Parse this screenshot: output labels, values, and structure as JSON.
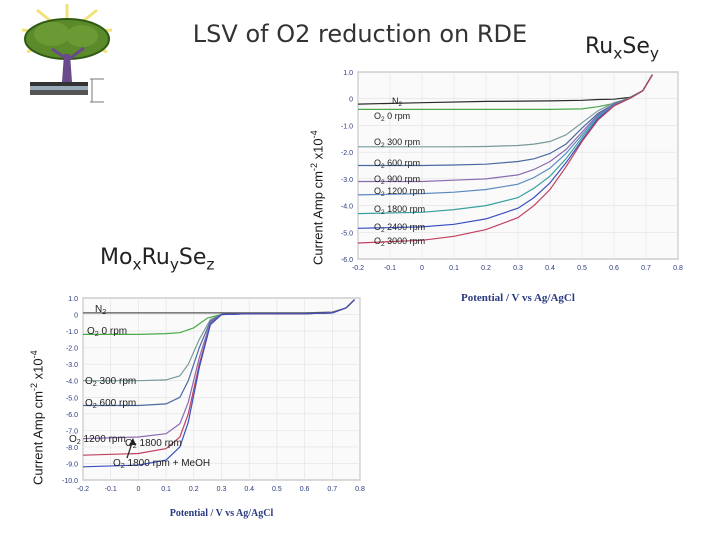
{
  "slide": {
    "title": "LSV of O2 reduction on RDE",
    "ru_label": {
      "a": "Ru",
      "b": "x",
      "c": "Se",
      "d": "y"
    },
    "mo_label": {
      "a": "Mo",
      "b": "x",
      "c": "Ru",
      "d": "y",
      "e": "Se",
      "f": "z"
    },
    "ylabel": {
      "a": "Current Amp cm",
      "b": "-2",
      "c": " x10",
      "d": "-4"
    }
  },
  "chart_data": [
    {
      "type": "line",
      "name": "RuxSey",
      "xlabel": "Potential / V vs Ag/AgCl",
      "ylabel": "Current Amp cm-2 x10-4",
      "xlim": [
        -0.2,
        0.8
      ],
      "ylim": [
        -6.0,
        1.0
      ],
      "xticks": [
        "-0.2",
        "-0.1",
        "0",
        "0.1",
        "0.2",
        "0.3",
        "0.4",
        "0.5",
        "0.6",
        "0.7",
        "0.8"
      ],
      "yticks": [
        "1.0",
        "0",
        "-1.0",
        "-2.0",
        "-3.0",
        "-4.0",
        "-5.0",
        "-6.0"
      ],
      "series": [
        {
          "name": "N2",
          "color": "#2a2a2a",
          "x": [
            -0.2,
            0.0,
            0.2,
            0.4,
            0.5,
            0.55,
            0.6,
            0.65,
            0.69,
            0.72
          ],
          "y": [
            -0.2,
            -0.15,
            -0.1,
            -0.08,
            -0.06,
            -0.03,
            -0.02,
            0.05,
            0.3,
            0.9
          ]
        },
        {
          "name": "O2 0 rpm",
          "color": "#4aa84a",
          "x": [
            -0.2,
            0.0,
            0.2,
            0.4,
            0.5,
            0.55,
            0.6,
            0.65,
            0.69,
            0.72
          ],
          "y": [
            -0.4,
            -0.4,
            -0.4,
            -0.4,
            -0.38,
            -0.3,
            -0.18,
            0.05,
            0.3,
            0.9
          ]
        },
        {
          "name": "O2 300 rpm",
          "color": "#7a9a9a",
          "x": [
            -0.2,
            0.0,
            0.1,
            0.2,
            0.3,
            0.35,
            0.4,
            0.45,
            0.5,
            0.55,
            0.6,
            0.65,
            0.69,
            0.72
          ],
          "y": [
            -1.8,
            -1.8,
            -1.8,
            -1.79,
            -1.75,
            -1.7,
            -1.6,
            -1.35,
            -0.9,
            -0.45,
            -0.15,
            0.02,
            0.3,
            0.9
          ]
        },
        {
          "name": "O2 600 rpm",
          "color": "#4a6aa0",
          "x": [
            -0.2,
            0.0,
            0.1,
            0.2,
            0.3,
            0.35,
            0.4,
            0.45,
            0.5,
            0.55,
            0.6,
            0.65,
            0.69,
            0.72
          ],
          "y": [
            -2.5,
            -2.5,
            -2.48,
            -2.45,
            -2.35,
            -2.25,
            -2.05,
            -1.7,
            -1.1,
            -0.55,
            -0.2,
            0.02,
            0.3,
            0.9
          ]
        },
        {
          "name": "O2 900 rpm",
          "color": "#8a6ab0",
          "x": [
            -0.2,
            0.0,
            0.1,
            0.2,
            0.3,
            0.35,
            0.4,
            0.45,
            0.5,
            0.55,
            0.6,
            0.65,
            0.69,
            0.72
          ],
          "y": [
            -3.1,
            -3.1,
            -3.05,
            -3.0,
            -2.85,
            -2.65,
            -2.35,
            -1.9,
            -1.25,
            -0.6,
            -0.22,
            0.02,
            0.3,
            0.9
          ]
        },
        {
          "name": "O2 1200 rpm",
          "color": "#5a8ac0",
          "x": [
            -0.2,
            0.0,
            0.1,
            0.2,
            0.3,
            0.35,
            0.4,
            0.45,
            0.5,
            0.55,
            0.6,
            0.65,
            0.69,
            0.72
          ],
          "y": [
            -3.6,
            -3.55,
            -3.5,
            -3.4,
            -3.2,
            -2.95,
            -2.6,
            -2.05,
            -1.35,
            -0.65,
            -0.24,
            0.02,
            0.3,
            0.9
          ]
        },
        {
          "name": "O2 1800 rpm",
          "color": "#3aa0a0",
          "x": [
            -0.2,
            0.0,
            0.1,
            0.2,
            0.3,
            0.35,
            0.4,
            0.45,
            0.5,
            0.55,
            0.6,
            0.65,
            0.69,
            0.72
          ],
          "y": [
            -4.3,
            -4.25,
            -4.15,
            -4.0,
            -3.7,
            -3.35,
            -2.9,
            -2.25,
            -1.45,
            -0.7,
            -0.25,
            0.02,
            0.3,
            0.9
          ]
        },
        {
          "name": "O2 2400 rpm",
          "color": "#3a50c0",
          "x": [
            -0.2,
            0.0,
            0.1,
            0.2,
            0.3,
            0.35,
            0.4,
            0.45,
            0.5,
            0.55,
            0.6,
            0.65,
            0.69,
            0.72
          ],
          "y": [
            -4.85,
            -4.8,
            -4.7,
            -4.5,
            -4.1,
            -3.7,
            -3.15,
            -2.4,
            -1.55,
            -0.75,
            -0.26,
            0.02,
            0.3,
            0.9
          ]
        },
        {
          "name": "O2 3000 rpm",
          "color": "#c04060",
          "x": [
            -0.2,
            0.0,
            0.1,
            0.2,
            0.3,
            0.35,
            0.4,
            0.45,
            0.5,
            0.55,
            0.6,
            0.65,
            0.69,
            0.72
          ],
          "y": [
            -5.4,
            -5.3,
            -5.15,
            -4.9,
            -4.45,
            -4.0,
            -3.4,
            -2.55,
            -1.6,
            -0.8,
            -0.27,
            0.02,
            0.3,
            0.9
          ]
        }
      ],
      "annotations": [
        {
          "text": "N2",
          "color": "#222222"
        },
        {
          "text": "O2 0 rpm",
          "color": "#222222"
        },
        {
          "text": "O2 300 rpm",
          "color": "#222222"
        },
        {
          "text": "O2 600 rpm",
          "color": "#222222"
        },
        {
          "text": "O2 900 rpm",
          "color": "#222222"
        },
        {
          "text": "O2 1200 rpm",
          "color": "#222222"
        },
        {
          "text": "O2 1800 rpm",
          "color": "#222222"
        },
        {
          "text": "O2 2400 rpm",
          "color": "#222222"
        },
        {
          "text": "O2 3000 rpm",
          "color": "#222222"
        }
      ]
    },
    {
      "type": "line",
      "name": "MoxRuySez",
      "xlabel": "Potential / V vs Ag/AgCl",
      "ylabel": "Current Amp cm-2 x10-4",
      "xlim": [
        -0.2,
        0.8
      ],
      "ylim": [
        -10.0,
        1.0
      ],
      "xticks": [
        "-0.2",
        "-0.1",
        "0",
        "0.1",
        "0.2",
        "0.3",
        "0.4",
        "0.5",
        "0.6",
        "0.7",
        "0.8"
      ],
      "yticks": [
        "1.0",
        "0",
        "-1.0",
        "-2.0",
        "-3.0",
        "-4.0",
        "-5.0",
        "-6.0",
        "-7.0",
        "-8.0",
        "-9.0",
        "-10.0"
      ],
      "series": [
        {
          "name": "N2",
          "color": "#555555",
          "x": [
            -0.2,
            0.0,
            0.2,
            0.4,
            0.6,
            0.7,
            0.75,
            0.78
          ],
          "y": [
            0.1,
            0.1,
            0.1,
            0.1,
            0.1,
            0.15,
            0.4,
            0.9
          ]
        },
        {
          "name": "O2 0 rpm",
          "color": "#4aa84a",
          "x": [
            -0.2,
            0.0,
            0.1,
            0.15,
            0.2,
            0.25,
            0.3,
            0.4,
            0.6,
            0.7,
            0.75,
            0.78
          ],
          "y": [
            -1.2,
            -1.2,
            -1.15,
            -1.1,
            -0.8,
            -0.2,
            0.0,
            0.05,
            0.05,
            0.1,
            0.4,
            0.9
          ]
        },
        {
          "name": "O2 300 rpm",
          "color": "#7a9a9a",
          "x": [
            -0.2,
            0.0,
            0.1,
            0.15,
            0.18,
            0.22,
            0.26,
            0.3,
            0.4,
            0.6,
            0.7,
            0.75,
            0.78
          ],
          "y": [
            -4.0,
            -4.0,
            -3.95,
            -3.7,
            -3.0,
            -1.5,
            -0.3,
            0.0,
            0.05,
            0.05,
            0.1,
            0.4,
            0.9
          ]
        },
        {
          "name": "O2 600 rpm",
          "color": "#4a6aa0",
          "x": [
            -0.2,
            0.0,
            0.1,
            0.15,
            0.18,
            0.22,
            0.26,
            0.3,
            0.4,
            0.6,
            0.7,
            0.75,
            0.78
          ],
          "y": [
            -5.5,
            -5.5,
            -5.4,
            -5.0,
            -4.0,
            -2.0,
            -0.4,
            0.0,
            0.05,
            0.05,
            0.1,
            0.4,
            0.9
          ]
        },
        {
          "name": "O2 1200 rpm",
          "color": "#8a6ab0",
          "x": [
            -0.2,
            0.0,
            0.1,
            0.15,
            0.18,
            0.22,
            0.26,
            0.3,
            0.4,
            0.6,
            0.7,
            0.75,
            0.78
          ],
          "y": [
            -7.5,
            -7.4,
            -7.2,
            -6.6,
            -5.3,
            -2.6,
            -0.5,
            0.0,
            0.05,
            0.05,
            0.1,
            0.4,
            0.9
          ]
        },
        {
          "name": "O2 1800 rpm",
          "color": "#c04060",
          "x": [
            -0.2,
            0.0,
            0.1,
            0.15,
            0.18,
            0.22,
            0.26,
            0.3,
            0.4,
            0.6,
            0.7,
            0.75,
            0.78
          ],
          "y": [
            -8.5,
            -8.4,
            -8.1,
            -7.4,
            -6.0,
            -3.0,
            -0.6,
            0.0,
            0.05,
            0.05,
            0.1,
            0.4,
            0.9
          ]
        },
        {
          "name": "O2 1800 rpm + MeOH",
          "color": "#3a50c0",
          "x": [
            -0.2,
            0.0,
            0.1,
            0.15,
            0.18,
            0.22,
            0.26,
            0.3,
            0.4,
            0.6,
            0.7,
            0.75,
            0.78
          ],
          "y": [
            -9.2,
            -9.1,
            -8.8,
            -8.0,
            -6.5,
            -3.2,
            -0.6,
            0.0,
            0.05,
            0.05,
            0.1,
            0.4,
            0.9
          ]
        }
      ],
      "annotations": [
        {
          "text": "N2",
          "color": "#222222"
        },
        {
          "text": "O2 0 rpm",
          "color": "#222222"
        },
        {
          "text": "O2 300 rpm",
          "color": "#222222"
        },
        {
          "text": "O2 600 rpm",
          "color": "#222222"
        },
        {
          "text": "O2 1200 rpm",
          "color": "#222222"
        },
        {
          "text": "O2 1800 rpm",
          "color": "#222222"
        },
        {
          "text": "O2 1800 rpm + MeOH",
          "color": "#222222"
        }
      ]
    }
  ]
}
